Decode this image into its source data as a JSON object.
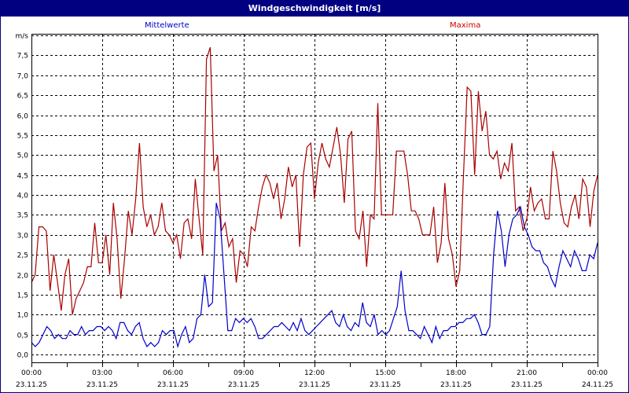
{
  "window": {
    "title": "Windgeschwindigkeit [m/s]"
  },
  "legend": {
    "mean_label": "Mittelwerte",
    "max_label": "Maxima"
  },
  "colors": {
    "titlebar": "#000080",
    "mean": "#0000cc",
    "max": "#aa0000",
    "grid": "#000000"
  },
  "chart_data": {
    "type": "line",
    "title": "Windgeschwindigkeit [m/s]",
    "ylabel": "m/s",
    "xlabel": "",
    "ylim": [
      0,
      8
    ],
    "yticks": [
      "0,0",
      "0,5",
      "1,0",
      "1,5",
      "2,0",
      "2,5",
      "3,0",
      "3,5",
      "4,0",
      "4,5",
      "5,0",
      "5,5",
      "6,0",
      "6,5",
      "7,0",
      "7,5",
      "m/s"
    ],
    "xticks": [
      {
        "time": "00:00",
        "date": "23.11.25"
      },
      {
        "time": "03:00",
        "date": "23.11.25"
      },
      {
        "time": "06:00",
        "date": "23.11.25"
      },
      {
        "time": "09:00",
        "date": "23.11.25"
      },
      {
        "time": "12:00",
        "date": "23.11.25"
      },
      {
        "time": "15:00",
        "date": "23.11.25"
      },
      {
        "time": "18:00",
        "date": "23.11.25"
      },
      {
        "time": "21:00",
        "date": "23.11.25"
      },
      {
        "time": "00:00",
        "date": "24.11.25"
      }
    ],
    "x_interval_minutes": 10,
    "grid": true,
    "legend_position": "top",
    "series": [
      {
        "name": "Mittelwerte",
        "color": "#0000cc",
        "values": [
          0.3,
          0.2,
          0.3,
          0.5,
          0.7,
          0.6,
          0.4,
          0.5,
          0.4,
          0.4,
          0.6,
          0.5,
          0.5,
          0.7,
          0.5,
          0.6,
          0.6,
          0.7,
          0.7,
          0.6,
          0.7,
          0.6,
          0.4,
          0.8,
          0.8,
          0.6,
          0.5,
          0.7,
          0.8,
          0.4,
          0.2,
          0.3,
          0.2,
          0.3,
          0.6,
          0.5,
          0.6,
          0.6,
          0.2,
          0.5,
          0.7,
          0.3,
          0.4,
          0.9,
          1.0,
          2.0,
          1.2,
          1.3,
          3.8,
          3.4,
          2.0,
          0.6,
          0.6,
          0.9,
          0.8,
          0.9,
          0.8,
          0.9,
          0.7,
          0.4,
          0.4,
          0.5,
          0.6,
          0.7,
          0.7,
          0.8,
          0.7,
          0.6,
          0.8,
          0.6,
          0.9,
          0.6,
          0.5,
          0.6,
          0.7,
          0.8,
          0.9,
          1.0,
          1.1,
          0.8,
          0.7,
          1.0,
          0.7,
          0.6,
          0.8,
          0.7,
          1.3,
          0.8,
          0.7,
          1.0,
          0.5,
          0.6,
          0.5,
          0.6,
          0.9,
          1.2,
          2.1,
          1.1,
          0.6,
          0.6,
          0.5,
          0.4,
          0.7,
          0.5,
          0.3,
          0.7,
          0.4,
          0.6,
          0.6,
          0.7,
          0.7,
          0.8,
          0.8,
          0.9,
          0.9,
          1.0,
          0.8,
          0.5,
          0.5,
          0.7,
          2.5,
          3.6,
          3.1,
          2.2,
          3.0,
          3.4,
          3.5,
          3.7,
          3.2,
          3.0,
          2.7,
          2.6,
          2.6,
          2.3,
          2.2,
          1.9,
          1.7,
          2.2,
          2.6,
          2.4,
          2.2,
          2.6,
          2.4,
          2.1,
          2.1,
          2.5,
          2.4,
          2.8
        ]
      },
      {
        "name": "Maxima",
        "color": "#aa0000",
        "values": [
          1.8,
          2.0,
          3.2,
          3.2,
          3.1,
          1.6,
          2.5,
          1.8,
          1.1,
          2.0,
          2.4,
          1.0,
          1.4,
          1.6,
          1.8,
          2.2,
          2.2,
          3.3,
          2.3,
          2.3,
          3.0,
          2.0,
          3.8,
          2.9,
          1.4,
          2.4,
          3.6,
          3.0,
          3.9,
          5.3,
          3.7,
          3.2,
          3.5,
          3.0,
          3.2,
          3.8,
          3.1,
          3.0,
          2.8,
          3.0,
          2.4,
          3.3,
          3.4,
          2.9,
          4.4,
          3.4,
          2.5,
          7.4,
          7.7,
          4.6,
          5.0,
          3.1,
          3.3,
          2.7,
          2.9,
          1.8,
          2.6,
          2.5,
          2.2,
          3.2,
          3.1,
          3.7,
          4.2,
          4.5,
          4.3,
          3.9,
          4.3,
          3.4,
          3.9,
          4.7,
          4.2,
          4.5,
          2.7,
          4.5,
          5.2,
          5.3,
          3.9,
          4.8,
          5.3,
          4.9,
          4.7,
          5.2,
          5.7,
          5.0,
          3.8,
          5.4,
          5.6,
          3.1,
          2.9,
          3.6,
          2.2,
          3.5,
          3.4,
          6.3,
          3.5,
          3.5,
          3.5,
          3.5,
          5.1,
          5.1,
          5.1,
          4.5,
          3.6,
          3.6,
          3.4,
          3.0,
          3.0,
          3.0,
          3.7,
          2.3,
          2.8,
          4.3,
          2.9,
          2.5,
          1.7,
          2.1,
          4.5,
          6.7,
          6.6,
          4.5,
          6.6,
          5.6,
          6.1,
          5.0,
          4.9,
          5.1,
          4.4,
          4.8,
          4.6,
          5.3,
          3.6,
          3.7,
          3.1,
          3.4,
          4.2,
          3.6,
          3.8,
          3.9,
          3.4,
          3.4,
          5.1,
          4.6,
          3.8,
          3.3,
          3.2,
          3.7,
          4.0,
          3.4,
          4.4,
          4.2,
          3.2,
          4.1,
          4.5
        ]
      }
    ]
  }
}
